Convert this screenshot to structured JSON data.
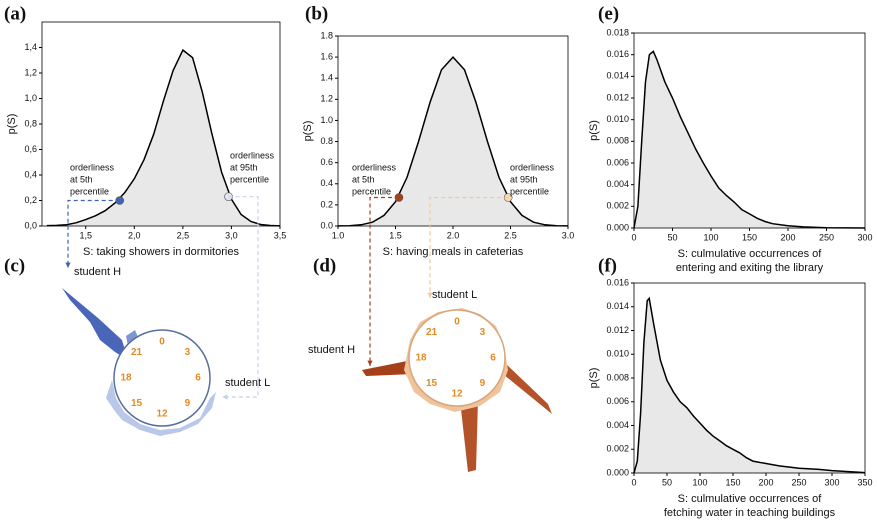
{
  "panel_labels": [
    "(a)",
    "(b)",
    "(e)",
    "(c)",
    "(d)",
    "(f)"
  ],
  "chart_data": [
    {
      "type": "area",
      "xlabel": [
        "S: taking showers in dormitories"
      ],
      "ylabel": "p(S)",
      "color": "#e8e8e8",
      "line_color": "#000000",
      "x": [
        1.1,
        1.2,
        1.3,
        1.4,
        1.5,
        1.6,
        1.7,
        1.8,
        1.9,
        2.0,
        2.1,
        2.2,
        2.3,
        2.4,
        2.5,
        2.6,
        2.7,
        2.8,
        2.9,
        3.0,
        3.1,
        3.2,
        3.3,
        3.4,
        3.5
      ],
      "values": [
        0.003,
        0.005,
        0.01,
        0.025,
        0.05,
        0.08,
        0.12,
        0.18,
        0.26,
        0.37,
        0.52,
        0.72,
        0.98,
        1.22,
        1.38,
        1.32,
        1.05,
        0.72,
        0.42,
        0.21,
        0.09,
        0.035,
        0.012,
        0.004,
        0.001
      ],
      "points": {
        "x": [
          1.85,
          2.97
        ],
        "y": [
          0.2,
          0.23
        ],
        "colors": [
          "#3f63b5",
          "#dfe6f2"
        ]
      },
      "annotations": [
        [
          "orderliness",
          "at 5th",
          "percentile"
        ],
        [
          "orderliness",
          "at 95th",
          "percentile"
        ]
      ],
      "xlim": [
        1.05,
        3.5
      ],
      "ylim": [
        0,
        1.6
      ],
      "xticks": [
        {
          "value": 1.5,
          "label": "1,5"
        },
        {
          "value": 2.0,
          "label": "2,0"
        },
        {
          "value": 2.5,
          "label": "2,5"
        },
        {
          "value": 3.0,
          "label": "3,0"
        },
        {
          "value": 3.5,
          "label": "3,5"
        }
      ],
      "yticks": [
        {
          "value": 0,
          "label": "0,0"
        },
        {
          "value": 0.2,
          "label": "0,2"
        },
        {
          "value": 0.4,
          "label": "0,4"
        },
        {
          "value": 0.6,
          "label": "0,6"
        },
        {
          "value": 0.8,
          "label": "0,8"
        },
        {
          "value": 1.0,
          "label": "1,0"
        },
        {
          "value": 1.2,
          "label": "1,2"
        },
        {
          "value": 1.4,
          "label": "1,4"
        }
      ]
    },
    {
      "type": "area",
      "xlabel": [
        "S: having meals in cafeterias"
      ],
      "ylabel": "p(S)",
      "color": "#e8e8e8",
      "line_color": "#000000",
      "x": [
        1.0,
        1.1,
        1.2,
        1.3,
        1.4,
        1.5,
        1.6,
        1.7,
        1.8,
        1.9,
        2.0,
        2.1,
        2.2,
        2.3,
        2.4,
        2.5,
        2.6,
        2.7,
        2.8,
        2.9,
        3.0
      ],
      "values": [
        0.001,
        0.003,
        0.011,
        0.036,
        0.1,
        0.23,
        0.46,
        0.8,
        1.17,
        1.48,
        1.6,
        1.48,
        1.17,
        0.8,
        0.46,
        0.23,
        0.1,
        0.036,
        0.011,
        0.003,
        0.001
      ],
      "points": {
        "x": [
          1.53,
          2.48
        ],
        "y": [
          0.27,
          0.27
        ],
        "colors": [
          "#a5401b",
          "#f8dcb0"
        ]
      },
      "annotations": [
        [
          "orderliness",
          "at 5th",
          "percentile"
        ],
        [
          "orderliness",
          "at 95th",
          "percentile"
        ]
      ],
      "xlim": [
        1.0,
        3.0
      ],
      "ylim": [
        0,
        1.8
      ],
      "xticks": [
        {
          "value": 1.0,
          "label": "1.0"
        },
        {
          "value": 1.5,
          "label": "1.5"
        },
        {
          "value": 2.0,
          "label": "2.0"
        },
        {
          "value": 2.5,
          "label": "2.5"
        },
        {
          "value": 3.0,
          "label": "3.0"
        }
      ],
      "yticks": [
        {
          "value": 0,
          "label": "0.0"
        },
        {
          "value": 0.2,
          "label": "0.2"
        },
        {
          "value": 0.4,
          "label": "0.4"
        },
        {
          "value": 0.6,
          "label": "0.6"
        },
        {
          "value": 0.8,
          "label": "0.8"
        },
        {
          "value": 1.0,
          "label": "1.0"
        },
        {
          "value": 1.2,
          "label": "1.2"
        },
        {
          "value": 1.4,
          "label": "1.4"
        },
        {
          "value": 1.6,
          "label": "1.6"
        },
        {
          "value": 1.8,
          "label": "1.8"
        }
      ]
    },
    {
      "type": "area",
      "xlabel": [
        "S: culmulative occurrences of",
        "entering and exiting the library"
      ],
      "ylabel": "p(S)",
      "color": "#e8e8e8",
      "line_color": "#000000",
      "x": [
        0,
        5,
        10,
        15,
        20,
        25,
        30,
        40,
        50,
        60,
        70,
        80,
        90,
        100,
        110,
        120,
        130,
        140,
        150,
        160,
        170,
        180,
        200,
        220,
        250,
        300
      ],
      "values": [
        0,
        0.002,
        0.008,
        0.0135,
        0.016,
        0.0163,
        0.0155,
        0.0135,
        0.012,
        0.0103,
        0.0088,
        0.0073,
        0.006,
        0.0048,
        0.0037,
        0.003,
        0.0024,
        0.0017,
        0.0013,
        0.0009,
        0.0006,
        0.0004,
        0.0002,
        0.0001,
        3e-05,
        0
      ],
      "xlim": [
        0,
        300
      ],
      "ylim": [
        0,
        0.018
      ],
      "xticks": [
        0,
        50,
        100,
        150,
        200,
        250,
        300
      ],
      "yticks": [
        {
          "value": 0,
          "label": "0.000"
        },
        {
          "value": 0.002,
          "label": "0.002"
        },
        {
          "value": 0.004,
          "label": "0.004"
        },
        {
          "value": 0.006,
          "label": "0.006"
        },
        {
          "value": 0.008,
          "label": "0.008"
        },
        {
          "value": 0.01,
          "label": "0.010"
        },
        {
          "value": 0.012,
          "label": "0.012"
        },
        {
          "value": 0.014,
          "label": "0.014"
        },
        {
          "value": 0.016,
          "label": "0.016"
        },
        {
          "value": 0.018,
          "label": "0.018"
        }
      ]
    },
    {
      "type": "area",
      "xlabel": [
        "S: culmulative occurrences of",
        "fetching water in teaching buildings"
      ],
      "ylabel": "p(S)",
      "color": "#e8e8e8",
      "line_color": "#000000",
      "x": [
        0,
        5,
        10,
        15,
        20,
        23,
        30,
        40,
        50,
        60,
        70,
        80,
        90,
        100,
        110,
        120,
        130,
        140,
        150,
        160,
        170,
        180,
        200,
        220,
        250,
        280,
        300,
        350
      ],
      "values": [
        0,
        0.001,
        0.005,
        0.011,
        0.0145,
        0.0147,
        0.0125,
        0.0095,
        0.0078,
        0.0068,
        0.006,
        0.0055,
        0.0048,
        0.0042,
        0.0036,
        0.0031,
        0.0027,
        0.0023,
        0.002,
        0.0017,
        0.0013,
        0.001,
        0.0008,
        0.0006,
        0.0004,
        0.0003,
        0.0002,
        3e-05
      ],
      "xlim": [
        0,
        350
      ],
      "ylim": [
        0,
        0.016
      ],
      "xticks": [
        0,
        50,
        100,
        150,
        200,
        250,
        300,
        350
      ],
      "yticks": [
        {
          "value": 0,
          "label": "0.000"
        },
        {
          "value": 0.002,
          "label": "0.002"
        },
        {
          "value": 0.004,
          "label": "0.004"
        },
        {
          "value": 0.006,
          "label": "0.006"
        },
        {
          "value": 0.008,
          "label": "0.008"
        },
        {
          "value": 0.01,
          "label": "0.010"
        },
        {
          "value": 0.012,
          "label": "0.012"
        },
        {
          "value": 0.014,
          "label": "0.014"
        },
        {
          "value": 0.016,
          "label": "0.016"
        }
      ]
    }
  ],
  "diagrams": [
    {
      "hours": [
        "0",
        "3",
        "6",
        "9",
        "12",
        "15",
        "18",
        "21"
      ],
      "labels": [
        "student H",
        "student L"
      ]
    },
    {
      "hours": [
        "0",
        "3",
        "6",
        "9",
        "12",
        "15",
        "18",
        "21"
      ],
      "labels": [
        "student H",
        "student L"
      ]
    }
  ]
}
